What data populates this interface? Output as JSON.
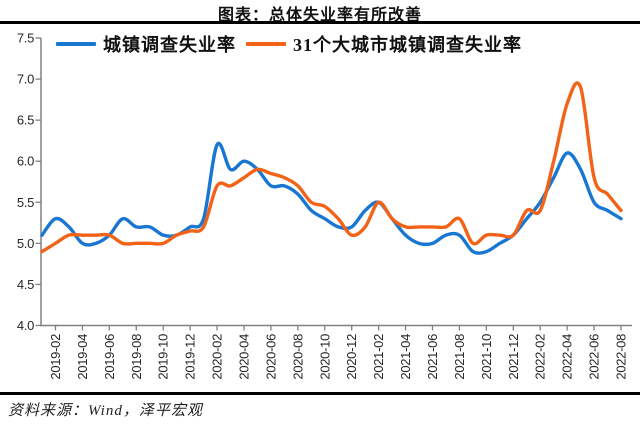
{
  "title": "图表：总体失业率有所改善",
  "source_note": "资料来源：Wind，泽平宏观",
  "colors": {
    "axis": "#808080",
    "tick_label": "#262626",
    "divider": "#000000",
    "series_urban": "#1977D2",
    "series_31cities": "#F26217"
  },
  "chart_data": {
    "type": "line",
    "title": "图表：总体失业率有所改善",
    "ylabel": "",
    "xlabel": "",
    "ylim": [
      4.0,
      7.5
    ],
    "ytick_step": 0.5,
    "grid": false,
    "smoothing": true,
    "legend_position": "top",
    "y_tick_labels": [
      "4.0",
      "4.5",
      "5.0",
      "5.5",
      "6.0",
      "6.5",
      "7.0",
      "7.5"
    ],
    "x_label_start_index": 1,
    "x_label_every": 2,
    "x": [
      "2019-01",
      "2019-02",
      "2019-03",
      "2019-04",
      "2019-05",
      "2019-06",
      "2019-07",
      "2019-08",
      "2019-09",
      "2019-10",
      "2019-11",
      "2019-12",
      "2020-01",
      "2020-02",
      "2020-03",
      "2020-04",
      "2020-05",
      "2020-06",
      "2020-07",
      "2020-08",
      "2020-09",
      "2020-10",
      "2020-11",
      "2020-12",
      "2021-01",
      "2021-02",
      "2021-03",
      "2021-04",
      "2021-05",
      "2021-06",
      "2021-07",
      "2021-08",
      "2021-09",
      "2021-10",
      "2021-11",
      "2021-12",
      "2022-01",
      "2022-02",
      "2022-03",
      "2022-04",
      "2022-05",
      "2022-06",
      "2022-07",
      "2022-08"
    ],
    "series": [
      {
        "name": "城镇调查失业率",
        "color": "#1977D2",
        "values": [
          5.1,
          5.3,
          5.2,
          5.0,
          5.0,
          5.1,
          5.3,
          5.2,
          5.2,
          5.1,
          5.1,
          5.2,
          5.3,
          6.2,
          5.9,
          6.0,
          5.9,
          5.7,
          5.7,
          5.6,
          5.4,
          5.3,
          5.2,
          5.2,
          5.4,
          5.5,
          5.3,
          5.1,
          5.0,
          5.0,
          5.1,
          5.1,
          4.9,
          4.9,
          5.0,
          5.1,
          5.3,
          5.5,
          5.8,
          6.1,
          5.9,
          5.5,
          5.4,
          5.3
        ]
      },
      {
        "name": "31个大城市城镇调查失业率",
        "color": "#F26217",
        "values": [
          4.9,
          5.0,
          5.1,
          5.1,
          5.1,
          5.1,
          5.0,
          5.0,
          5.0,
          5.0,
          5.1,
          5.15,
          5.2,
          5.7,
          5.7,
          5.8,
          5.9,
          5.85,
          5.8,
          5.7,
          5.5,
          5.45,
          5.3,
          5.1,
          5.2,
          5.5,
          5.3,
          5.2,
          5.2,
          5.2,
          5.2,
          5.3,
          5.0,
          5.1,
          5.1,
          5.1,
          5.4,
          5.4,
          6.0,
          6.7,
          6.9,
          5.8,
          5.6,
          5.4
        ]
      }
    ]
  }
}
